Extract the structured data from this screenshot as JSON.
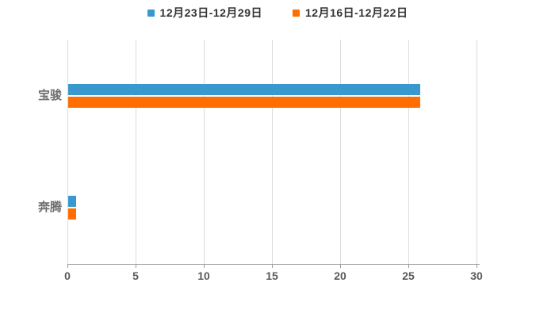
{
  "legend": {
    "items": [
      {
        "label": "12月23日-12月29日",
        "color": "#3999CE"
      },
      {
        "label": "12月16日-12月22日",
        "color": "#FF6E00"
      }
    ]
  },
  "chart_data": {
    "type": "bar",
    "orientation": "horizontal",
    "title": "",
    "categories": [
      "宝骏",
      "奔腾"
    ],
    "series": [
      {
        "name": "12月23日-12月29日",
        "color": "#3999CE",
        "values": [
          25.8,
          0.6
        ]
      },
      {
        "name": "12月16日-12月22日",
        "color": "#FF6E00",
        "values": [
          25.8,
          0.6
        ]
      }
    ],
    "xlim": [
      0,
      30
    ],
    "xticks": [
      0,
      5,
      10,
      15,
      20,
      25,
      30
    ],
    "grid": true,
    "legend_position": "top"
  },
  "colors": {
    "background": "#FFFFFF",
    "gridline": "#DCDCDC",
    "axis_line": "#999999",
    "tick_label": "#595959",
    "category_label": "#6E6E6E",
    "legend_text": "#333333"
  }
}
